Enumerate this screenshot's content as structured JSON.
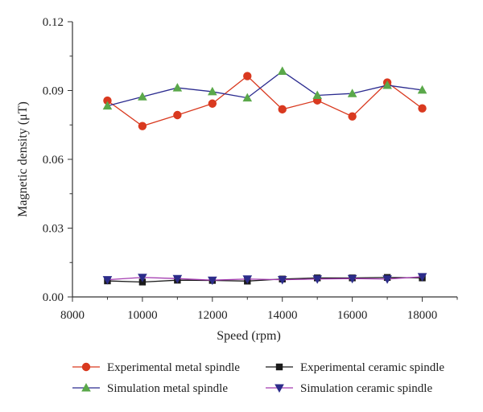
{
  "chart_data": {
    "type": "line",
    "xlabel": "Speed (rpm)",
    "ylabel": "Magnetic density (μT)",
    "xlim": [
      8000,
      19000
    ],
    "ylim": [
      0,
      0.12
    ],
    "x_ticks": [
      "8000",
      "10000",
      "12000",
      "14000",
      "16000",
      "18000"
    ],
    "y_ticks": [
      "0.00",
      "0.03",
      "0.06",
      "0.09",
      "0.12"
    ],
    "grid": false,
    "legend_position": "bottom",
    "series": [
      {
        "name": "Experimental metal spindle",
        "color": "#d9391f",
        "marker": "circle",
        "x": [
          9000,
          10000,
          11000,
          12000,
          13000,
          14000,
          15000,
          16000,
          17000,
          18000
        ],
        "values": [
          0.0856,
          0.0745,
          0.0793,
          0.0843,
          0.0963,
          0.0818,
          0.0857,
          0.0787,
          0.0935,
          0.0822
        ]
      },
      {
        "name": "Simulation metal spindle",
        "color": "#2b2b8f",
        "marker_color": "#5aa84a",
        "marker": "triangle-up",
        "x": [
          9000,
          10000,
          11000,
          12000,
          13000,
          14000,
          15000,
          16000,
          17000,
          18000
        ],
        "values": [
          0.0833,
          0.0873,
          0.0912,
          0.0895,
          0.0868,
          0.0984,
          0.0879,
          0.0887,
          0.0923,
          0.0902
        ]
      },
      {
        "name": "Experimental ceramic spindle",
        "color": "#1a1a1a",
        "marker": "square",
        "x": [
          9000,
          10000,
          11000,
          12000,
          13000,
          14000,
          15000,
          16000,
          17000,
          18000
        ],
        "values": [
          0.007,
          0.0065,
          0.0073,
          0.0072,
          0.0069,
          0.0078,
          0.0083,
          0.0083,
          0.0085,
          0.0083
        ]
      },
      {
        "name": "Simulation ceramic spindle",
        "color": "#a33ab0",
        "marker_color": "#2c2c8a",
        "marker": "triangle-down",
        "x": [
          9000,
          10000,
          11000,
          12000,
          13000,
          14000,
          15000,
          16000,
          17000,
          18000
        ],
        "values": [
          0.0075,
          0.0085,
          0.008,
          0.0073,
          0.0078,
          0.0075,
          0.0078,
          0.008,
          0.0078,
          0.0088
        ]
      }
    ]
  }
}
